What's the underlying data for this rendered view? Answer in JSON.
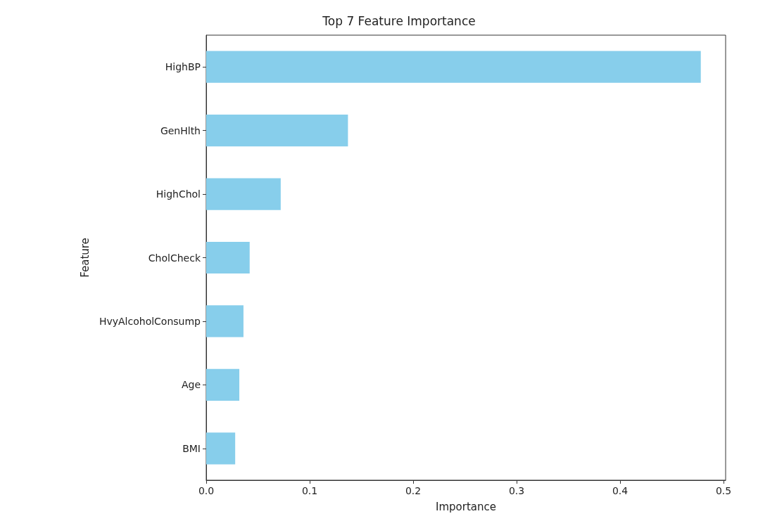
{
  "chart_data": {
    "type": "bar",
    "orientation": "horizontal",
    "title": "Top 7 Feature Importance",
    "xlabel": "Importance",
    "ylabel": "Feature",
    "categories": [
      "HighBP",
      "GenHlth",
      "HighChol",
      "CholCheck",
      "HvyAlcoholConsump",
      "Age",
      "BMI"
    ],
    "values": [
      0.478,
      0.137,
      0.072,
      0.042,
      0.036,
      0.032,
      0.028
    ],
    "color": "#87ceeb",
    "xlim": [
      0,
      0.502
    ],
    "xticks": [
      {
        "value": 0,
        "label": "0.0"
      },
      {
        "value": 0.1,
        "label": "0.1"
      },
      {
        "value": 0.2,
        "label": "0.2"
      },
      {
        "value": 0.3,
        "label": "0.3"
      },
      {
        "value": 0.4,
        "label": "0.4"
      },
      {
        "value": 0.5,
        "label": "0.5"
      }
    ],
    "grid": false
  }
}
